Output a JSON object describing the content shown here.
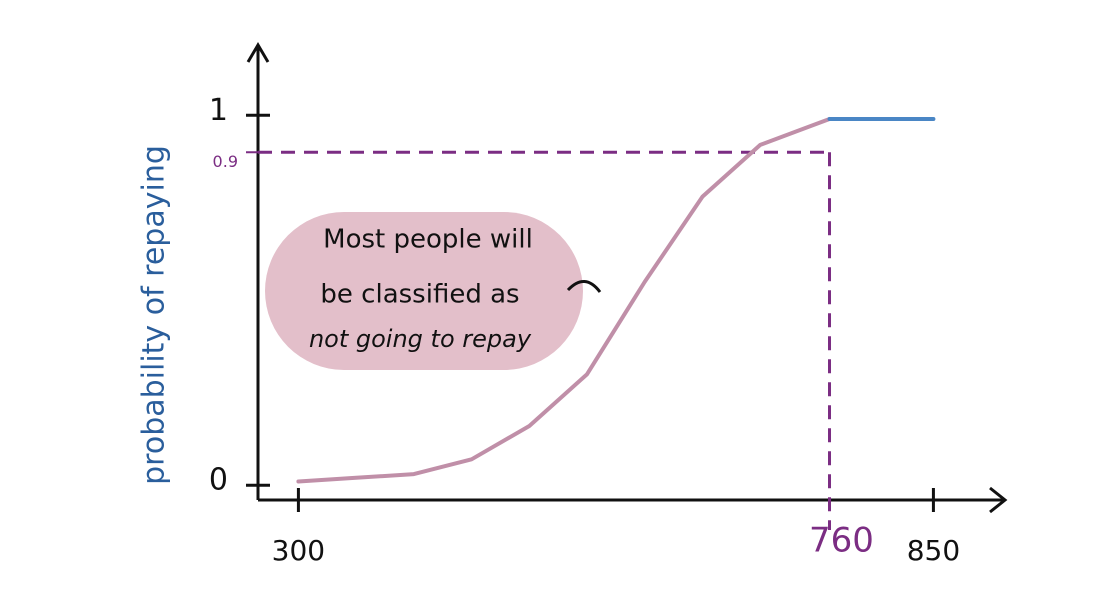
{
  "chart_data": {
    "type": "line",
    "y_label": "probability of repaying",
    "annotation": [
      "Most people will",
      "be classified as",
      "not going to repay"
    ],
    "x": [
      300,
      350,
      400,
      450,
      500,
      550,
      600,
      650,
      700,
      760,
      800,
      850
    ],
    "series": [
      {
        "color": "#c08fa8",
        "values": [
          0.01,
          0.02,
          0.03,
          0.07,
          0.16,
          0.3,
          0.55,
          0.78,
          0.92,
          0.99,
          null,
          null
        ]
      },
      {
        "color": "#4a86c5",
        "values": [
          null,
          null,
          null,
          null,
          null,
          null,
          null,
          null,
          null,
          0.99,
          0.99,
          0.99
        ]
      }
    ],
    "xlim": [
      265,
      912
    ],
    "ylim": [
      -0.04,
      1.19
    ],
    "xticks": [
      300,
      760,
      850
    ],
    "yticks": [
      0,
      0.9,
      1
    ],
    "guides": {
      "x": 760,
      "y": 0.9,
      "color": "#7b2d83"
    }
  }
}
